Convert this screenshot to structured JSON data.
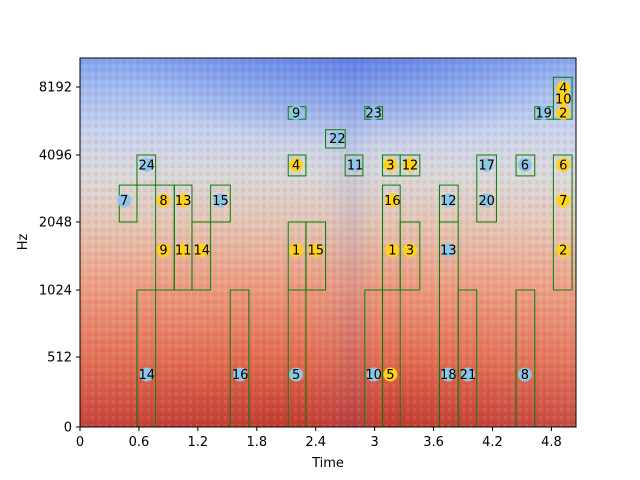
{
  "chart_data": {
    "type": "spectrogram",
    "title": "",
    "xlabel": "Time",
    "ylabel": "Hz",
    "xlim": [
      0,
      5.05
    ],
    "ylim_scale": "log2-like",
    "x_ticks": [
      0,
      0.6,
      1.2,
      1.8,
      2.4,
      3.0,
      3.6,
      4.2,
      4.8
    ],
    "x_tick_labels": [
      "0",
      "0.6",
      "1.2",
      "1.8",
      "2.4",
      "3",
      "3.6",
      "4.2",
      "4.8"
    ],
    "y_ticks": [
      0,
      512,
      1024,
      2048,
      4096,
      8192
    ],
    "y_tick_labels": [
      "0",
      "512",
      "1024",
      "2048",
      "4096",
      "8192"
    ],
    "colormap": "coolwarm",
    "colors": {
      "box": "#008000",
      "yellow_marker": "#ffd21e",
      "blue_marker": "#8fc6e3"
    },
    "boxes": [
      {
        "t0": 0.4,
        "t1": 0.58,
        "f0": 2048,
        "f1": 3000
      },
      {
        "t0": 0.58,
        "t1": 0.77,
        "f0": 3000,
        "f1": 4096
      },
      {
        "t0": 0.58,
        "t1": 0.77,
        "f0": 0,
        "f1": 1024
      },
      {
        "t0": 0.77,
        "t1": 0.96,
        "f0": 1024,
        "f1": 3000
      },
      {
        "t0": 0.96,
        "t1": 1.14,
        "f0": 1024,
        "f1": 3000
      },
      {
        "t0": 1.14,
        "t1": 1.33,
        "f0": 1024,
        "f1": 2048
      },
      {
        "t0": 1.33,
        "t1": 1.53,
        "f0": 2048,
        "f1": 3000
      },
      {
        "t0": 1.53,
        "t1": 1.72,
        "f0": 0,
        "f1": 1024
      },
      {
        "t0": 2.12,
        "t1": 2.3,
        "f0": 5900,
        "f1": 6700
      },
      {
        "t0": 2.12,
        "t1": 2.3,
        "f0": 3300,
        "f1": 4096
      },
      {
        "t0": 2.12,
        "t1": 2.3,
        "f0": 1024,
        "f1": 2048
      },
      {
        "t0": 2.3,
        "t1": 2.5,
        "f0": 1024,
        "f1": 2048
      },
      {
        "t0": 2.12,
        "t1": 2.3,
        "f0": 0,
        "f1": 1024
      },
      {
        "t0": 2.5,
        "t1": 2.7,
        "f0": 4400,
        "f1": 5300
      },
      {
        "t0": 2.7,
        "t1": 2.88,
        "f0": 3300,
        "f1": 4096
      },
      {
        "t0": 2.9,
        "t1": 3.08,
        "f0": 5900,
        "f1": 6700
      },
      {
        "t0": 3.08,
        "t1": 3.26,
        "f0": 3300,
        "f1": 4096
      },
      {
        "t0": 3.26,
        "t1": 3.46,
        "f0": 3300,
        "f1": 4096
      },
      {
        "t0": 3.08,
        "t1": 3.26,
        "f0": 1024,
        "f1": 3000
      },
      {
        "t0": 3.26,
        "t1": 3.46,
        "f0": 1024,
        "f1": 2048
      },
      {
        "t0": 2.9,
        "t1": 3.08,
        "f0": 0,
        "f1": 1024
      },
      {
        "t0": 3.08,
        "t1": 3.26,
        "f0": 0,
        "f1": 1024
      },
      {
        "t0": 3.66,
        "t1": 3.85,
        "f0": 2048,
        "f1": 3000
      },
      {
        "t0": 3.66,
        "t1": 3.85,
        "f0": 0,
        "f1": 2048
      },
      {
        "t0": 3.85,
        "t1": 4.04,
        "f0": 0,
        "f1": 1024
      },
      {
        "t0": 4.04,
        "t1": 4.24,
        "f0": 2048,
        "f1": 4096
      },
      {
        "t0": 4.44,
        "t1": 4.63,
        "f0": 3300,
        "f1": 4096
      },
      {
        "t0": 4.44,
        "t1": 4.63,
        "f0": 0,
        "f1": 1024
      },
      {
        "t0": 4.63,
        "t1": 4.82,
        "f0": 5900,
        "f1": 6700
      },
      {
        "t0": 4.82,
        "t1": 5.01,
        "f0": 5900,
        "f1": 8700
      },
      {
        "t0": 4.82,
        "t1": 5.01,
        "f0": 1024,
        "f1": 4096
      }
    ],
    "markers": [
      {
        "label": "24",
        "t": 0.68,
        "f": 3700,
        "color": "blue"
      },
      {
        "label": "7",
        "t": 0.45,
        "f": 2560,
        "color": "blue"
      },
      {
        "label": "8",
        "t": 0.85,
        "f": 2560,
        "color": "yellow"
      },
      {
        "label": "13",
        "t": 1.05,
        "f": 2560,
        "color": "yellow"
      },
      {
        "label": "15",
        "t": 1.43,
        "f": 2560,
        "color": "blue"
      },
      {
        "label": "9",
        "t": 0.85,
        "f": 1536,
        "color": "yellow"
      },
      {
        "label": "11",
        "t": 1.05,
        "f": 1536,
        "color": "yellow"
      },
      {
        "label": "14",
        "t": 1.24,
        "f": 1536,
        "color": "yellow"
      },
      {
        "label": "14",
        "t": 0.68,
        "f": 384,
        "color": "blue"
      },
      {
        "label": "16",
        "t": 1.63,
        "f": 384,
        "color": "blue"
      },
      {
        "label": "9",
        "t": 2.2,
        "f": 6300,
        "color": "blue"
      },
      {
        "label": "4",
        "t": 2.2,
        "f": 3700,
        "color": "yellow"
      },
      {
        "label": "1",
        "t": 2.2,
        "f": 1536,
        "color": "yellow"
      },
      {
        "label": "15",
        "t": 2.4,
        "f": 1536,
        "color": "yellow"
      },
      {
        "label": "5",
        "t": 2.2,
        "f": 384,
        "color": "blue"
      },
      {
        "label": "22",
        "t": 2.62,
        "f": 4850,
        "color": "blue"
      },
      {
        "label": "11",
        "t": 2.8,
        "f": 3700,
        "color": "blue"
      },
      {
        "label": "23",
        "t": 2.99,
        "f": 6300,
        "color": "blue"
      },
      {
        "label": "3",
        "t": 3.16,
        "f": 3700,
        "color": "yellow"
      },
      {
        "label": "12",
        "t": 3.36,
        "f": 3700,
        "color": "yellow"
      },
      {
        "label": "16",
        "t": 3.18,
        "f": 2560,
        "color": "yellow"
      },
      {
        "label": "1",
        "t": 3.18,
        "f": 1536,
        "color": "yellow"
      },
      {
        "label": "3",
        "t": 3.36,
        "f": 1536,
        "color": "yellow"
      },
      {
        "label": "10",
        "t": 2.99,
        "f": 384,
        "color": "blue"
      },
      {
        "label": "5",
        "t": 3.16,
        "f": 384,
        "color": "yellow"
      },
      {
        "label": "12",
        "t": 3.75,
        "f": 2560,
        "color": "blue"
      },
      {
        "label": "13",
        "t": 3.75,
        "f": 1536,
        "color": "blue"
      },
      {
        "label": "18",
        "t": 3.75,
        "f": 384,
        "color": "blue"
      },
      {
        "label": "21",
        "t": 3.95,
        "f": 384,
        "color": "blue"
      },
      {
        "label": "17",
        "t": 4.14,
        "f": 3700,
        "color": "blue"
      },
      {
        "label": "20",
        "t": 4.14,
        "f": 2560,
        "color": "blue"
      },
      {
        "label": "6",
        "t": 4.53,
        "f": 3700,
        "color": "blue"
      },
      {
        "label": "8",
        "t": 4.53,
        "f": 384,
        "color": "blue"
      },
      {
        "label": "19",
        "t": 4.72,
        "f": 6300,
        "color": "blue"
      },
      {
        "label": "4",
        "t": 4.92,
        "f": 8100,
        "color": "yellow"
      },
      {
        "label": "10",
        "t": 4.92,
        "f": 7250,
        "color": "yellow"
      },
      {
        "label": "2",
        "t": 4.92,
        "f": 6300,
        "color": "yellow"
      },
      {
        "label": "6",
        "t": 4.92,
        "f": 3700,
        "color": "yellow"
      },
      {
        "label": "7",
        "t": 4.92,
        "f": 2560,
        "color": "yellow"
      },
      {
        "label": "2",
        "t": 4.92,
        "f": 1536,
        "color": "yellow"
      }
    ]
  }
}
